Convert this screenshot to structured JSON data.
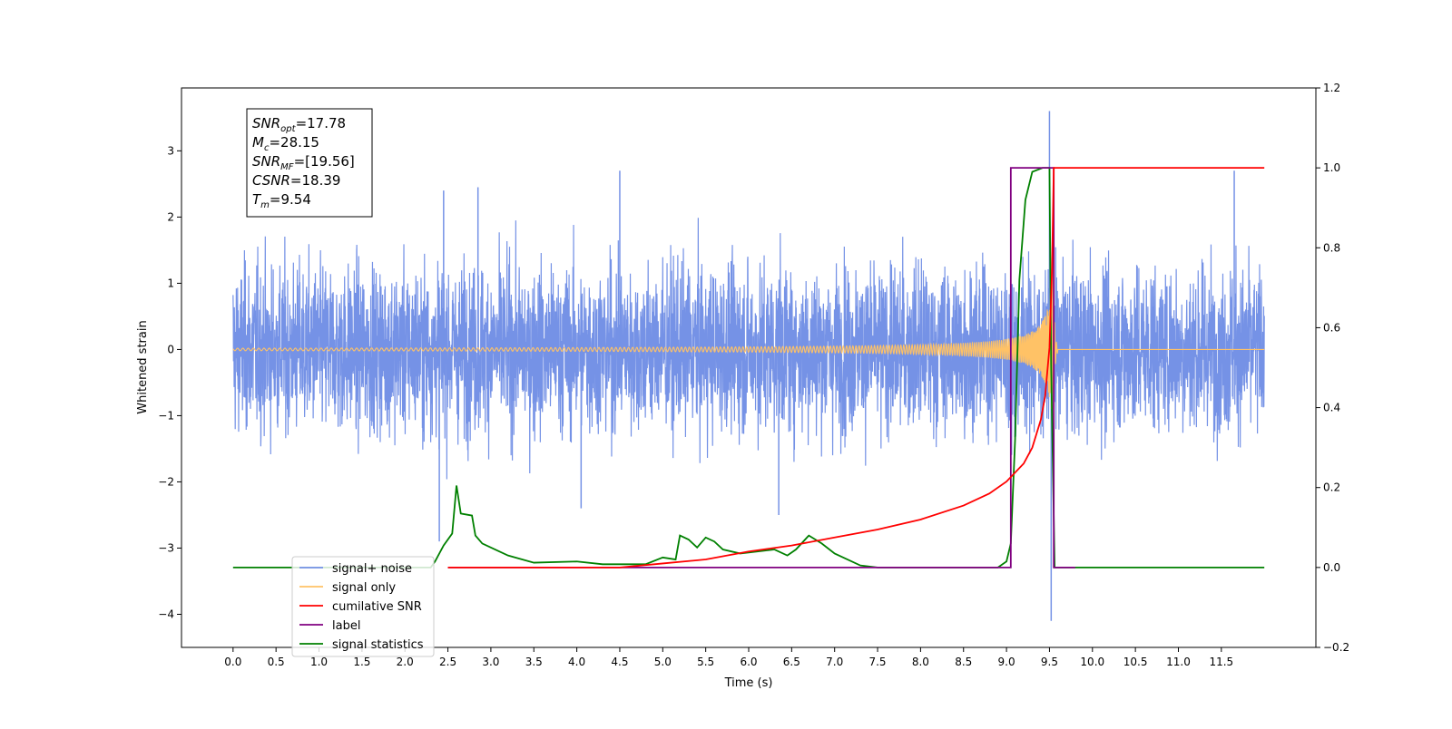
{
  "chart_data": {
    "type": "line",
    "title": "",
    "xlabel": "Time (s)",
    "ylabel": "Whitened strain",
    "y2label": "",
    "xlim": [
      -0.6,
      12.6
    ],
    "ylim": [
      -4.5,
      3.95
    ],
    "y2lim": [
      -0.2,
      1.2
    ],
    "grid": false,
    "x_ticks": [
      "0.0",
      "0.5",
      "1.0",
      "1.5",
      "2.0",
      "2.5",
      "3.0",
      "3.5",
      "4.0",
      "4.5",
      "5.0",
      "5.5",
      "6.0",
      "6.5",
      "7.0",
      "7.5",
      "8.0",
      "8.5",
      "9.0",
      "9.5",
      "10.0",
      "10.5",
      "11.0",
      "11.5"
    ],
    "y_ticks": [
      "3",
      "2",
      "1",
      "0",
      "−1",
      "−2",
      "−3",
      "−4"
    ],
    "y2_ticks": [
      "1.2",
      "1.0",
      "0.8",
      "0.6",
      "0.4",
      "0.2",
      "0.0",
      "−0.2"
    ],
    "annotation": {
      "lines": [
        {
          "base": "SNR",
          "sub": "opt",
          "value": "=17.78"
        },
        {
          "base": "M",
          "sub": "c",
          "value": "=28.15"
        },
        {
          "base": "SNR",
          "sub": "MF",
          "value": "=[19.56]"
        },
        {
          "base": "CSNR",
          "sub": "",
          "value": "=18.39"
        },
        {
          "base": "T",
          "sub": "m",
          "value": "=9.54"
        }
      ]
    },
    "legend": {
      "placement": "lower-left",
      "entries": [
        {
          "label": "signal+ noise",
          "color": "#7592e6"
        },
        {
          "label": "signal only",
          "color": "#ffc266"
        },
        {
          "label": "cumilative SNR",
          "color": "#ff0000"
        },
        {
          "label": "label",
          "color": "#800080"
        },
        {
          "label": "signal statistics",
          "color": "#008000"
        }
      ]
    },
    "series": [
      {
        "name": "signal+ noise",
        "axis": "left",
        "color": "#7592e6",
        "description_note": "",
        "x_range": [
          0.0,
          12.0
        ],
        "noise_sigma": 0.62,
        "spikes": [
          [
            2.4,
            -2.9
          ],
          [
            2.45,
            2.4
          ],
          [
            2.85,
            2.45
          ],
          [
            4.05,
            -2.4
          ],
          [
            4.5,
            2.7
          ],
          [
            6.35,
            -2.5
          ],
          [
            9.5,
            3.6
          ],
          [
            9.52,
            -4.1
          ],
          [
            11.65,
            2.7
          ]
        ]
      },
      {
        "name": "signal only",
        "axis": "left",
        "color": "#ffc266",
        "chirp": {
          "t_start": 0.0,
          "t_merge": 9.54,
          "t_end": 12.0,
          "peak_amplitude": 1.45
        }
      },
      {
        "name": "cumilative SNR",
        "axis": "right",
        "color": "#ff0000",
        "points": [
          [
            2.5,
            0.0
          ],
          [
            4.5,
            0.0
          ],
          [
            5.0,
            0.01
          ],
          [
            5.5,
            0.02
          ],
          [
            6.0,
            0.04
          ],
          [
            6.5,
            0.055
          ],
          [
            7.0,
            0.075
          ],
          [
            7.5,
            0.095
          ],
          [
            8.0,
            0.12
          ],
          [
            8.5,
            0.155
          ],
          [
            8.8,
            0.185
          ],
          [
            9.0,
            0.215
          ],
          [
            9.2,
            0.26
          ],
          [
            9.3,
            0.3
          ],
          [
            9.4,
            0.37
          ],
          [
            9.45,
            0.43
          ],
          [
            9.5,
            0.55
          ],
          [
            9.53,
            0.75
          ],
          [
            9.55,
            1.0
          ],
          [
            12.0,
            1.0
          ]
        ]
      },
      {
        "name": "label",
        "axis": "right",
        "color": "#800080",
        "points": [
          [
            2.5,
            0.0
          ],
          [
            9.05,
            0.0
          ],
          [
            9.05,
            1.0
          ],
          [
            9.55,
            1.0
          ],
          [
            9.55,
            0.0
          ],
          [
            9.8,
            0.0
          ]
        ]
      },
      {
        "name": "signal statistics",
        "axis": "right",
        "color": "#008000",
        "points": [
          [
            0.0,
            0.0
          ],
          [
            2.3,
            0.0
          ],
          [
            2.35,
            0.015
          ],
          [
            2.45,
            0.055
          ],
          [
            2.55,
            0.085
          ],
          [
            2.6,
            0.205
          ],
          [
            2.65,
            0.135
          ],
          [
            2.78,
            0.13
          ],
          [
            2.82,
            0.08
          ],
          [
            2.9,
            0.06
          ],
          [
            3.05,
            0.045
          ],
          [
            3.2,
            0.03
          ],
          [
            3.5,
            0.012
          ],
          [
            4.0,
            0.015
          ],
          [
            4.3,
            0.008
          ],
          [
            4.8,
            0.008
          ],
          [
            5.0,
            0.025
          ],
          [
            5.15,
            0.02
          ],
          [
            5.2,
            0.08
          ],
          [
            5.3,
            0.07
          ],
          [
            5.4,
            0.05
          ],
          [
            5.5,
            0.075
          ],
          [
            5.6,
            0.065
          ],
          [
            5.7,
            0.045
          ],
          [
            5.9,
            0.035
          ],
          [
            6.1,
            0.04
          ],
          [
            6.3,
            0.045
          ],
          [
            6.45,
            0.03
          ],
          [
            6.55,
            0.045
          ],
          [
            6.7,
            0.08
          ],
          [
            6.85,
            0.06
          ],
          [
            7.0,
            0.035
          ],
          [
            7.3,
            0.005
          ],
          [
            7.5,
            0.0
          ],
          [
            8.0,
            0.0
          ],
          [
            8.9,
            0.0
          ],
          [
            9.0,
            0.015
          ],
          [
            9.05,
            0.06
          ],
          [
            9.1,
            0.32
          ],
          [
            9.15,
            0.72
          ],
          [
            9.22,
            0.92
          ],
          [
            9.3,
            0.99
          ],
          [
            9.42,
            1.0
          ],
          [
            9.5,
            1.0
          ],
          [
            9.52,
            0.5
          ],
          [
            9.56,
            0.0
          ],
          [
            12.0,
            0.0
          ]
        ]
      }
    ]
  }
}
